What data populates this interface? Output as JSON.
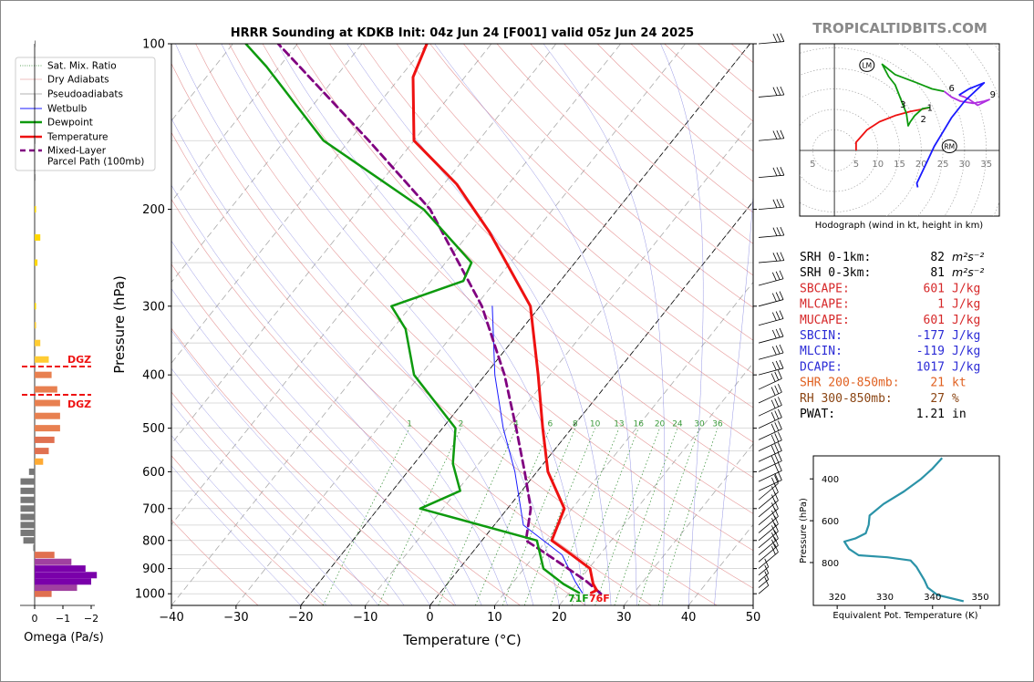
{
  "title": "HRRR Sounding at KDKB Init: 04z Jun 24 [F001] valid 05z Jun 24 2025",
  "brand": "TROPICALTIDBITS.COM",
  "skewt": {
    "ylabel": "Pressure (hPa)",
    "xlabel": "Temperature (°C)",
    "x_ticks": [
      "−40",
      "−30",
      "−20",
      "−10",
      "0",
      "10",
      "20",
      "30",
      "40",
      "50"
    ],
    "y_ticks": [
      "100",
      "200",
      "300",
      "400",
      "500",
      "600",
      "700",
      "800",
      "900",
      "1000"
    ],
    "mixing_ratio_labels": [
      "1",
      "2",
      "4",
      "6",
      "8",
      "10",
      "13",
      "16",
      "20",
      "24",
      "30",
      "36"
    ],
    "surface_labels": {
      "dewpoint": "71F",
      "temperature": "76F"
    }
  },
  "legend": [
    {
      "label": "Sat. Mix. Ratio",
      "color": "#2e8b2e",
      "style": "dotted"
    },
    {
      "label": "Dry Adiabats",
      "color": "#e08080",
      "style": "solid-thin"
    },
    {
      "label": "Pseudoadiabats",
      "color": "#999999",
      "style": "dashed"
    },
    {
      "label": "Wetbulb",
      "color": "#1a1aff",
      "style": "solid"
    },
    {
      "label": "Dewpoint",
      "color": "#0e9a0e",
      "style": "thick"
    },
    {
      "label": "Temperature",
      "color": "#ee1111",
      "style": "thick"
    },
    {
      "label": "Mixed-Layer\nParcel Path (100mb)",
      "color": "#800080",
      "style": "thick-dashed"
    }
  ],
  "omega": {
    "xlabel": "Omega (Pa/s)",
    "ticks": [
      "0",
      "−1",
      "−2"
    ],
    "dgz_label": "DGZ"
  },
  "hodograph": {
    "caption": "Hodograph (wind in kt, height in km)",
    "ring_labels": [
      "5",
      "5",
      "10",
      "15",
      "20",
      "25",
      "30",
      "35"
    ],
    "height_labels": [
      "1",
      "2",
      "3",
      "6",
      "9"
    ],
    "markers": [
      "LM",
      "RM"
    ]
  },
  "indices": [
    {
      "label": "SRH 0-1km:",
      "value": "82",
      "unit": "m²s⁻²",
      "color": "#000000"
    },
    {
      "label": "SRH 0-3km:",
      "value": "81",
      "unit": "m²s⁻²",
      "color": "#000000"
    },
    {
      "label": "SBCAPE:",
      "value": "601",
      "unit": "J/kg",
      "color": "#d62728"
    },
    {
      "label": "MLCAPE:",
      "value": "1",
      "unit": "J/kg",
      "color": "#d62728"
    },
    {
      "label": "MUCAPE:",
      "value": "601",
      "unit": "J/kg",
      "color": "#d62728"
    },
    {
      "label": "SBCIN:",
      "value": "-177",
      "unit": "J/kg",
      "color": "#2b2bd6"
    },
    {
      "label": "MLCIN:",
      "value": "-119",
      "unit": "J/kg",
      "color": "#2b2bd6"
    },
    {
      "label": "DCAPE:",
      "value": "1017",
      "unit": "J/kg",
      "color": "#2b2bd6"
    },
    {
      "label": "SHR 200-850mb:",
      "value": "21",
      "unit": "kt",
      "color": "#e06020"
    },
    {
      "label": "RH 300-850mb:",
      "value": "27",
      "unit": "%",
      "color": "#8b4513"
    },
    {
      "label": "PWAT:",
      "value": "1.21",
      "unit": "in",
      "color": "#000000"
    }
  ],
  "theta_e": {
    "xlabel": "Equivalent Pot. Temperature (K)",
    "ylabel": "Pressure (hPa)",
    "x_ticks": [
      "320",
      "330",
      "340",
      "350"
    ],
    "y_ticks": [
      "400",
      "600",
      "800"
    ]
  },
  "chart_data": [
    {
      "type": "line",
      "title": "HRRR Sounding at KDKB Init: 04z Jun 24 [F001] valid 05z Jun 24 2025",
      "xlabel": "Temperature (°C)",
      "ylabel": "Pressure (hPa)",
      "xlim": [
        -40,
        50
      ],
      "ylim": [
        1050,
        100
      ],
      "yscale": "log",
      "skew": true,
      "series": [
        {
          "name": "Temperature",
          "color": "#ee1111",
          "points": [
            [
              23.4,
              996
            ],
            [
              23.9,
              985
            ],
            [
              22.6,
              960
            ],
            [
              20.2,
              900
            ],
            [
              15.7,
              850
            ],
            [
              10.8,
              800
            ],
            [
              8.8,
              700
            ],
            [
              1.7,
              600
            ],
            [
              -4.5,
              500
            ],
            [
              -11.8,
              400
            ],
            [
              -21.5,
              300
            ],
            [
              -37,
              220
            ],
            [
              -48,
              180
            ],
            [
              -60,
              150
            ],
            [
              -68,
              115
            ],
            [
              -70,
              100
            ]
          ]
        },
        {
          "name": "Dewpoint",
          "color": "#0e9a0e",
          "points": [
            [
              21.5,
              996
            ],
            [
              18,
              960
            ],
            [
              13,
              900
            ],
            [
              8.5,
              800
            ],
            [
              -13.5,
              700
            ],
            [
              -9.5,
              650
            ],
            [
              -14,
              580
            ],
            [
              -18,
              500
            ],
            [
              -31,
              400
            ],
            [
              -38,
              330
            ],
            [
              -43,
              300
            ],
            [
              -35,
              270
            ],
            [
              -36,
              250
            ],
            [
              -50,
              200
            ],
            [
              -74,
              150
            ],
            [
              -92,
              110
            ],
            [
              -98,
              100
            ]
          ]
        },
        {
          "name": "Wetbulb",
          "color": "#1a1aff",
          "points": [
            [
              22,
              996
            ],
            [
              19.5,
              950
            ],
            [
              14.2,
              850
            ],
            [
              4.5,
              750
            ],
            [
              -3.4,
              600
            ],
            [
              -10.6,
              500
            ],
            [
              -18.5,
              400
            ],
            [
              -27.4,
              300
            ]
          ]
        },
        {
          "name": "Mixed-Layer\nParcel Path (100mb)",
          "color": "#800080",
          "points": [
            [
              25,
              1000
            ],
            [
              21.3,
              950
            ],
            [
              16.8,
              900
            ],
            [
              12,
              850
            ],
            [
              6.8,
              800
            ],
            [
              3.6,
              700
            ],
            [
              -1.9,
              600
            ],
            [
              -8.6,
              500
            ],
            [
              -17,
              400
            ],
            [
              -29,
              300
            ],
            [
              -49,
              200
            ],
            [
              -67,
              150
            ],
            [
              -93,
              100
            ]
          ]
        }
      ]
    },
    {
      "type": "bar",
      "xlabel": "Omega (Pa/s)",
      "xlim": [
        0.2,
        -2.5
      ],
      "series": [
        {
          "name": "Omega",
          "pressure": [
            1000,
            975,
            950,
            925,
            900,
            875,
            850,
            825,
            800,
            775,
            750,
            725,
            700,
            675,
            650,
            625,
            600,
            575,
            550,
            525,
            500,
            475,
            450,
            425,
            400,
            375,
            350,
            325,
            300,
            250,
            225,
            200,
            175,
            150,
            125,
            100
          ],
          "values": [
            -0.6,
            -1.5,
            -2.0,
            -2.2,
            -1.8,
            -1.3,
            -0.7,
            0.05,
            0.4,
            0.5,
            0.5,
            0.5,
            0.5,
            0.5,
            0.5,
            0.5,
            0.2,
            -0.3,
            -0.5,
            -0.7,
            -0.9,
            -0.9,
            -0.9,
            -0.8,
            -0.6,
            -0.5,
            -0.2,
            -0.05,
            -0.05,
            -0.1,
            -0.2,
            -0.05,
            0,
            0,
            0,
            0
          ]
        }
      ]
    },
    {
      "type": "line",
      "xlabel": "Equivalent Pot. Temperature (K)",
      "ylabel": "Pressure (hPa)",
      "xlim": [
        315,
        354
      ],
      "ylim": [
        1005,
        290
      ],
      "series": [
        {
          "name": "Theta-E",
          "points": [
            [
              346.5,
              985
            ],
            [
              341,
              955
            ],
            [
              339,
              920
            ],
            [
              338.3,
              885
            ],
            [
              336.6,
              820
            ],
            [
              335.4,
              790
            ],
            [
              330.5,
              775
            ],
            [
              324.5,
              765
            ],
            [
              322.5,
              735
            ],
            [
              321.5,
              700
            ],
            [
              323.8,
              685
            ],
            [
              326,
              660
            ],
            [
              326.6,
              620
            ],
            [
              326.8,
              575
            ],
            [
              329.7,
              520
            ],
            [
              334,
              460
            ],
            [
              337.6,
              400
            ],
            [
              340,
              350
            ],
            [
              342,
              300
            ]
          ]
        }
      ]
    },
    {
      "type": "line",
      "title": "Hodograph (wind in kt, height in km)",
      "xlim": [
        -8,
        38
      ],
      "ylim": [
        -16,
        26
      ],
      "series": [
        {
          "name": "Hodograph",
          "points": [
            [
              5,
              0
            ],
            [
              5,
              2
            ],
            [
              7.5,
              5
            ],
            [
              10.4,
              7
            ],
            [
              14,
              8.5
            ],
            [
              17.5,
              9.5
            ],
            [
              20,
              10
            ],
            [
              22,
              10.5
            ],
            [
              20.3,
              10.2
            ],
            [
              18.5,
              8.5
            ],
            [
              17.5,
              7
            ],
            [
              17,
              6
            ],
            [
              16.6,
              9
            ],
            [
              14,
              16
            ],
            [
              12.5,
              18
            ],
            [
              11,
              21
            ],
            [
              14,
              18.5
            ],
            [
              19,
              16.5
            ],
            [
              22.5,
              15
            ],
            [
              25.3,
              14.4
            ],
            [
              27,
              13
            ],
            [
              29,
              12
            ],
            [
              32,
              11.5
            ],
            [
              34.5,
              12
            ],
            [
              35.7,
              12.4
            ],
            [
              33,
              11
            ],
            [
              31,
              12.5
            ],
            [
              30,
              13
            ],
            [
              28.7,
              13.5
            ],
            [
              31,
              15
            ],
            [
              34.5,
              16.5
            ],
            [
              30,
              12
            ],
            [
              27,
              8
            ],
            [
              25,
              4.5
            ],
            [
              23,
              1
            ],
            [
              21,
              -3.5
            ],
            [
              19,
              -8
            ],
            [
              19.2,
              -9
            ]
          ]
        }
      ],
      "labeled_heights": [
        "1",
        "2",
        "3",
        "6",
        "9"
      ],
      "storm_motion": {
        "LM": [
          7.5,
          20.8
        ],
        "RM": [
          26.5,
          1
        ]
      }
    }
  ]
}
